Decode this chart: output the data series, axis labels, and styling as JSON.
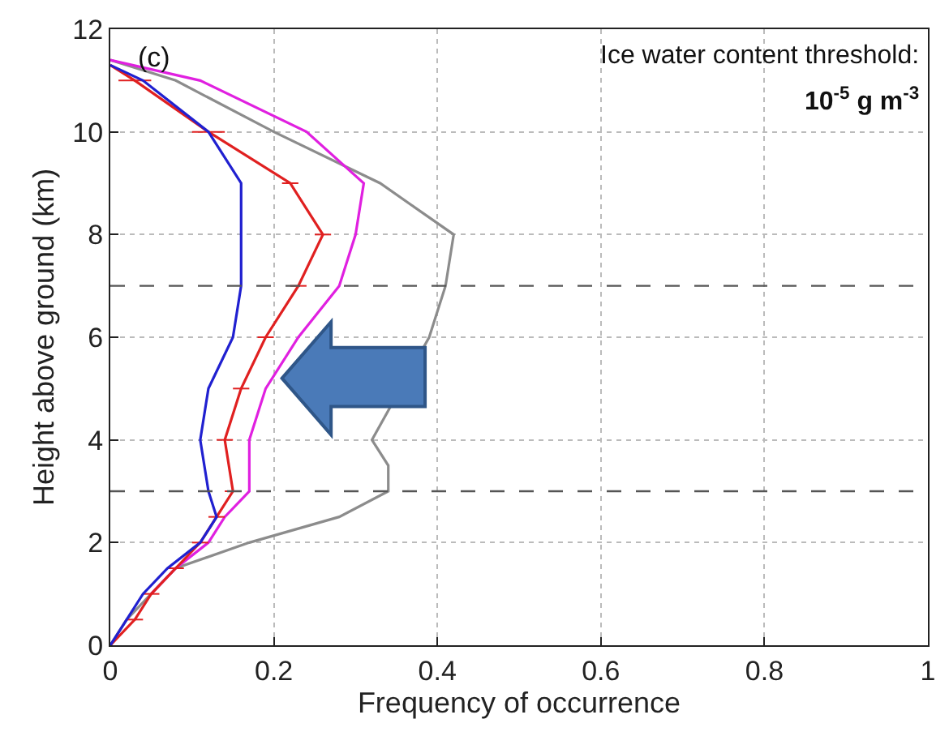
{
  "chart_data": {
    "type": "line",
    "xlabel": "Frequency of occurrence",
    "ylabel": "Height above ground (km)",
    "annotations": [
      "(c)",
      "Ice water content threshold:",
      "10$^{-5}$ g m$^{-3}$"
    ],
    "xlim": [
      0,
      1
    ],
    "xticks": [
      0,
      0.2,
      0.4,
      0.6,
      0.8,
      1
    ],
    "ylim": [
      0,
      12
    ],
    "yticks": [
      0,
      2,
      4,
      6,
      8,
      10,
      12
    ],
    "grid": true,
    "line_style": "solid",
    "series": [
      {
        "color": "#8c8c8c",
        "x": [
          0,
          0.02,
          0.05,
          0.08,
          0.17,
          0.28,
          0.34,
          0.34,
          0.32,
          0.39,
          0.41,
          0.42,
          0.33,
          0.2,
          0.08,
          0
        ],
        "values": [
          0,
          0.5,
          1,
          1.5,
          2,
          2.5,
          3,
          3.5,
          4,
          6,
          7,
          8,
          9,
          10,
          11,
          11.4
        ]
      },
      {
        "color": "#e020e0",
        "x": [
          0.05,
          0.08,
          0.12,
          0.14,
          0.17,
          0.17,
          0.19,
          0.23,
          0.28,
          0.3,
          0.31,
          0.24,
          0.11,
          0
        ],
        "values": [
          1,
          1.5,
          2,
          2.5,
          3,
          4,
          5,
          6,
          7,
          8,
          9,
          10,
          11,
          11.4
        ]
      },
      {
        "color": "#e02020",
        "x": [
          0,
          0.03,
          0.05,
          0.08,
          0.11,
          0.13,
          0.15,
          0.14,
          0.16,
          0.19,
          0.23,
          0.26,
          0.22,
          0.12,
          0.03,
          0
        ],
        "values": [
          0,
          0.5,
          1,
          1.5,
          2,
          2.5,
          3,
          4,
          5,
          6,
          7,
          8,
          9,
          10,
          11,
          11.3
        ],
        "xerrors": [
          null,
          0.01,
          0.01,
          0.01,
          0.01,
          0.01,
          0.01,
          0.01,
          0.01,
          0.01,
          0.01,
          0.01,
          0.01,
          0.02,
          0.02,
          null
        ]
      },
      {
        "color": "#2020d0",
        "x": [
          0,
          0.02,
          0.04,
          0.07,
          0.11,
          0.13,
          0.12,
          0.11,
          0.12,
          0.15,
          0.16,
          0.16,
          0.16,
          0.12,
          0.04,
          0
        ],
        "values": [
          0,
          0.5,
          1,
          1.5,
          2,
          2.5,
          3,
          4,
          5,
          6,
          7,
          8,
          9,
          10,
          11,
          11.3
        ]
      }
    ],
    "ref_lines": [
      {
        "axis": "y",
        "value": 3,
        "color": "#555555",
        "line_style": "dashed"
      },
      {
        "axis": "y",
        "value": 7,
        "color": "#555555",
        "line_style": "dashed"
      }
    ]
  }
}
